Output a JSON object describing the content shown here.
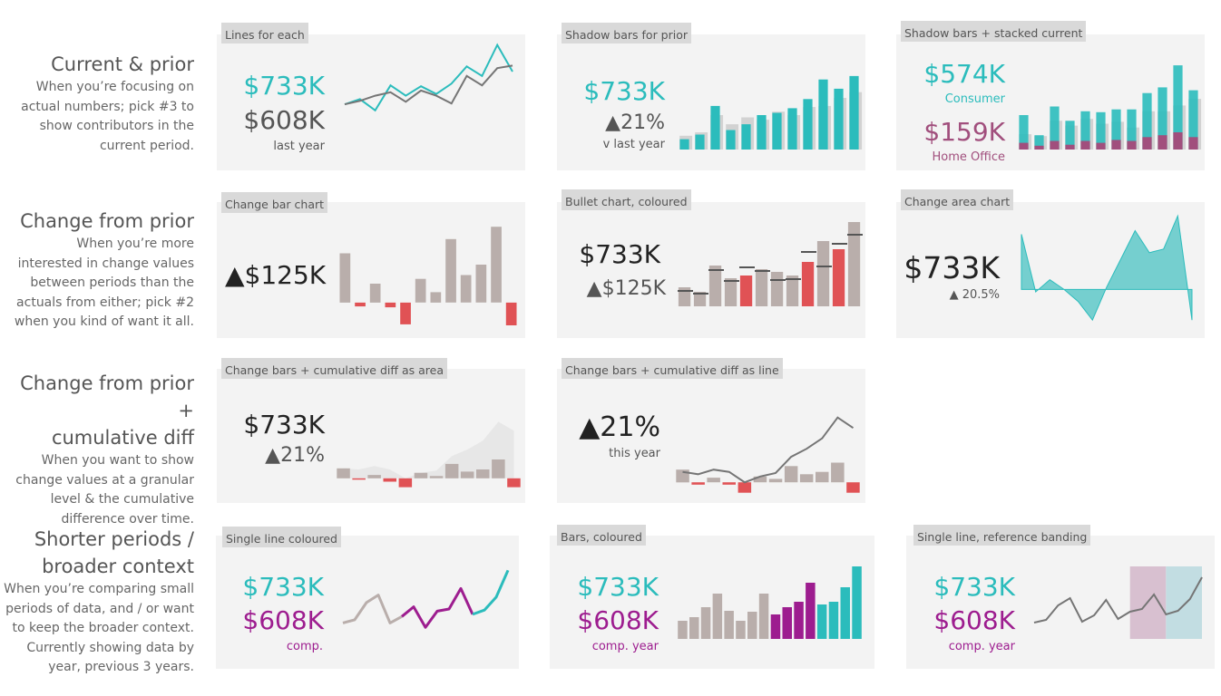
{
  "rows": [
    {
      "title_lines": [
        "Current & prior"
      ],
      "desc_lines": [
        "When you’re focusing on",
        "actual numbers; pick #3 to",
        "show contributors in the",
        "current period."
      ]
    },
    {
      "title_lines": [
        "Change from prior"
      ],
      "desc_lines": [
        "When you’re more",
        "interested in change values",
        "between periods than the",
        "actuals from either; pick #2",
        "when you kind of want it all."
      ]
    },
    {
      "title_lines": [
        "Change from prior +",
        "cumulative diff"
      ],
      "desc_lines": [
        "When you want to show",
        "change values at a granular",
        "level & the cumulative",
        "difference over time."
      ]
    },
    {
      "title_lines": [
        "Shorter periods /",
        "broader context"
      ],
      "desc_lines": [
        "When you’re comparing small",
        "periods of data, and / or want",
        "to keep the broader context.",
        "Currently showing data by",
        "year, previous 3 years."
      ]
    }
  ],
  "panels": {
    "p1": {
      "label": "Lines for each",
      "value1": "$733K",
      "value2": "$608K",
      "sub": "last year"
    },
    "p2": {
      "label": "Shadow bars for prior",
      "value1": "$733K",
      "value2": "▲21%",
      "sub": "v last year"
    },
    "p3": {
      "label": "Shadow bars + stacked current",
      "value1": "$574K",
      "sub1": "Consumer",
      "value2": "$159K",
      "sub2": "Home Office"
    },
    "p4": {
      "label": "Change bar chart",
      "value1": "▲$125K"
    },
    "p5": {
      "label": "Bullet chart, coloured",
      "value1": "$733K",
      "value2": "▲$125K"
    },
    "p6": {
      "label": "Change area chart",
      "value1": "$733K",
      "value2": "▲ 20.5%"
    },
    "p7": {
      "label": "Change bars + cumulative diff as area",
      "value1": "$733K",
      "value2": "▲21%"
    },
    "p8": {
      "label": "Change bars + cumulative diff as line",
      "value1": "▲21%",
      "sub": "this year"
    },
    "p9": {
      "label": "Single line coloured",
      "value1": "$733K",
      "value2": "$608K",
      "sub": "comp."
    },
    "p10": {
      "label": "Bars, coloured",
      "value1": "$733K",
      "value2": "$608K",
      "sub": "comp. year"
    },
    "p11": {
      "label": "Single line, reference banding",
      "value1": "$733K",
      "value2": "$608K",
      "sub": "comp. year"
    }
  },
  "colors": {
    "teal": "#2bbcbc",
    "grey": "#757575",
    "bar_grey": "#b9aeab",
    "shadow": "#d2d2d2",
    "red": "#e05255",
    "pink": "#a14f7d",
    "magenta": "#9d1d8f",
    "band_pink": "#d8c0d0",
    "band_blue": "#c2dde2",
    "area_teal": "#5ec8c8"
  },
  "chart_data": [
    {
      "id": "p1",
      "type": "line",
      "ylim": [
        0,
        10
      ],
      "series": [
        {
          "values": [
            4.2,
            4.8,
            3.5,
            6.4,
            5.2,
            6.3,
            5.4,
            6.6,
            8.6,
            7.5,
            11.1,
            8.0
          ],
          "color": "#2bbcbc"
        },
        {
          "values": [
            4.2,
            4.6,
            5.2,
            5.6,
            4.5,
            5.8,
            5.2,
            4.3,
            7.5,
            6.4,
            8.4,
            8.7
          ],
          "color": "#757575"
        }
      ]
    },
    {
      "id": "p2",
      "type": "bar",
      "ylim": [
        0,
        75
      ],
      "series": [
        {
          "values": [
            12,
            15,
            30,
            22,
            28,
            26,
            33,
            30,
            37,
            38,
            45,
            50
          ],
          "color": "#d2d2d2"
        },
        {
          "values": [
            9,
            13,
            38,
            17,
            22,
            30,
            32,
            36,
            44,
            61,
            53,
            64
          ],
          "color": "#2bbcbc"
        }
      ]
    },
    {
      "id": "p3",
      "type": "bar",
      "ylim": [
        0,
        90
      ],
      "series": [
        {
          "values": [
            16,
            14,
            30,
            25,
            32,
            27,
            29,
            23,
            40,
            40,
            46,
            53
          ],
          "color": "#d2d2d2"
        },
        {
          "values": [
            36,
            15,
            45,
            30,
            40,
            39,
            42,
            42,
            59,
            65,
            88,
            62
          ],
          "color": "#2bbcbc"
        },
        {
          "values": [
            7,
            4,
            9,
            5,
            9,
            7,
            10,
            9,
            13,
            15,
            18,
            13
          ],
          "color": "#a14f7d"
        }
      ]
    },
    {
      "id": "p4",
      "type": "bar",
      "ylim": [
        -25,
        85
      ],
      "values": [
        52,
        -4,
        20,
        -5,
        -23,
        25,
        11,
        67,
        29,
        40,
        80,
        -24
      ]
    },
    {
      "id": "p5",
      "type": "bar",
      "ylim": [
        0,
        100
      ],
      "values": [
        21,
        16,
        45,
        31,
        34,
        41,
        38,
        34,
        49,
        72,
        63,
        93
      ],
      "bullet": [
        17,
        14,
        40,
        28,
        43,
        39,
        29,
        30,
        60,
        44,
        69,
        79
      ]
    },
    {
      "id": "p6",
      "type": "area",
      "ylim": [
        -30,
        55
      ],
      "values": [
        45,
        -2,
        8,
        0,
        -10,
        -25,
        2,
        25,
        48,
        30,
        33,
        60,
        -25
      ]
    },
    {
      "id": "p7",
      "type": "bar",
      "ylim": [
        -10,
        80
      ],
      "values": [
        9,
        -1,
        3,
        -3,
        -8,
        5,
        2,
        13,
        6,
        8,
        17,
        -8
      ],
      "cumulative": [
        9,
        8,
        11,
        8,
        0,
        5,
        7,
        20,
        26,
        34,
        51,
        43
      ],
      "cumulative_series": {
        "color": "#e7e7e7"
      }
    },
    {
      "id": "p8",
      "type": "bar",
      "ylim": [
        -10,
        80
      ],
      "values": [
        11,
        -2,
        4,
        -2,
        -9,
        5,
        3,
        14,
        7,
        9,
        17,
        -9
      ],
      "cumulative": [
        9,
        7,
        11,
        9,
        0,
        5,
        8,
        22,
        29,
        38,
        56,
        47
      ],
      "cumulative_series": {
        "color": "#757575"
      }
    },
    {
      "id": "p9",
      "type": "line",
      "ylim": [
        0,
        80
      ],
      "values": [
        19,
        22,
        38,
        45,
        19,
        25,
        34,
        15,
        30,
        32,
        51,
        27,
        31,
        43,
        68
      ],
      "segments": {
        "grey": [
          0,
          5
        ],
        "pink": [
          5,
          11
        ],
        "teal": [
          11,
          14
        ]
      }
    },
    {
      "id": "p10",
      "type": "bar",
      "ylim": [
        0,
        80
      ],
      "values": [
        20,
        24,
        35,
        50,
        31,
        20,
        30,
        50,
        27,
        35,
        41,
        62,
        38,
        41,
        57,
        80
      ],
      "colors": [
        "#b9aeab",
        "#b9aeab",
        "#b9aeab",
        "#b9aeab",
        "#b9aeab",
        "#b9aeab",
        "#b9aeab",
        "#b9aeab",
        "#9d1d8f",
        "#9d1d8f",
        "#9d1d8f",
        "#9d1d8f",
        "#2bbcbc",
        "#2bbcbc",
        "#2bbcbc",
        "#2bbcbc"
      ]
    },
    {
      "id": "p11",
      "type": "line",
      "ylim": [
        0,
        80
      ],
      "values": [
        18,
        21,
        37,
        45,
        19,
        26,
        43,
        22,
        30,
        33,
        49,
        27,
        31,
        44,
        68
      ],
      "bands": [
        [
          8,
          11
        ],
        [
          11,
          14
        ]
      ]
    }
  ]
}
